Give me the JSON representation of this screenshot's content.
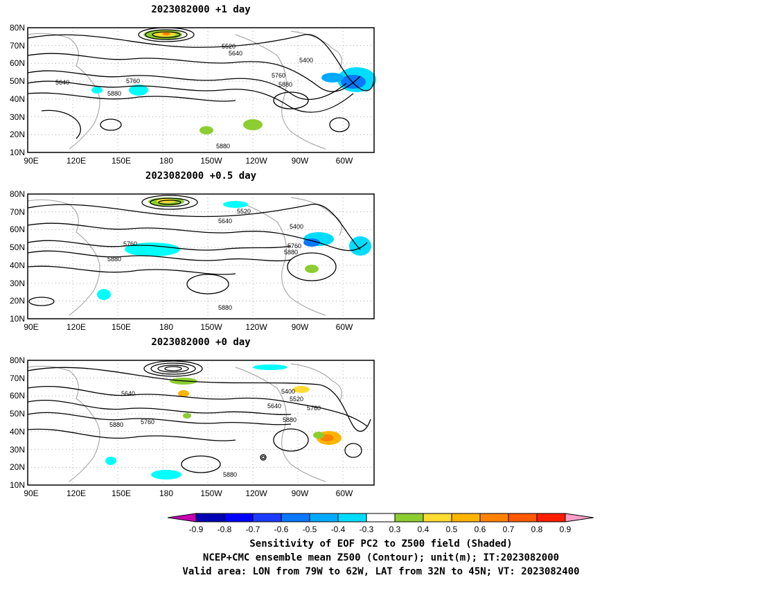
{
  "panels": [
    {
      "title": "2023082000  +1 day",
      "contour_labels": [
        "5520",
        "5640",
        "5400",
        "5640",
        "5760",
        "5760",
        "5880",
        "5880",
        "5880"
      ]
    },
    {
      "title": "2023082000  +0.5 day",
      "contour_labels": [
        "5520",
        "5640",
        "5400",
        "5760",
        "5880",
        "5760",
        "5880",
        "5880"
      ]
    },
    {
      "title": "2023082000  +0 day",
      "contour_labels": [
        "5640",
        "5400",
        "5520",
        "5640",
        "5760",
        "5760",
        "5880",
        "5880",
        "5880"
      ]
    }
  ],
  "lat_labels": [
    "80N",
    "70N",
    "60N",
    "50N",
    "40N",
    "30N",
    "20N",
    "10N"
  ],
  "lon_labels": [
    "90E",
    "120E",
    "150E",
    "180",
    "150W",
    "120W",
    "90W",
    "60W"
  ],
  "colorbar": {
    "ticks": [
      "-0.9",
      "-0.8",
      "-0.7",
      "-0.6",
      "-0.5",
      "-0.4",
      "-0.3",
      "0.3",
      "0.4",
      "0.5",
      "0.6",
      "0.7",
      "0.8",
      "0.9"
    ],
    "colors": [
      "#0000b4",
      "#0000ff",
      "#1e3cff",
      "#0a78ff",
      "#00aaff",
      "#00dcff",
      "#00ffff",
      "#ffffff",
      "#8ccd32",
      "#ffdc32",
      "#ffb400",
      "#ff8200",
      "#ff5a00",
      "#ff1e00",
      "#ff0000"
    ],
    "left_arrow_color": "#c800b4",
    "right_arrow_color": "#ffa0c8"
  },
  "footer": {
    "line1": "Sensitivity of EOF PC2 to Z500 field (Shaded)",
    "line2": "NCEP+CMC ensemble mean Z500 (Contour); unit(m); IT:2023082000",
    "line3": "Valid area: LON from 79W to 62W, LAT from 32N to 45N; VT: 2023082400"
  }
}
